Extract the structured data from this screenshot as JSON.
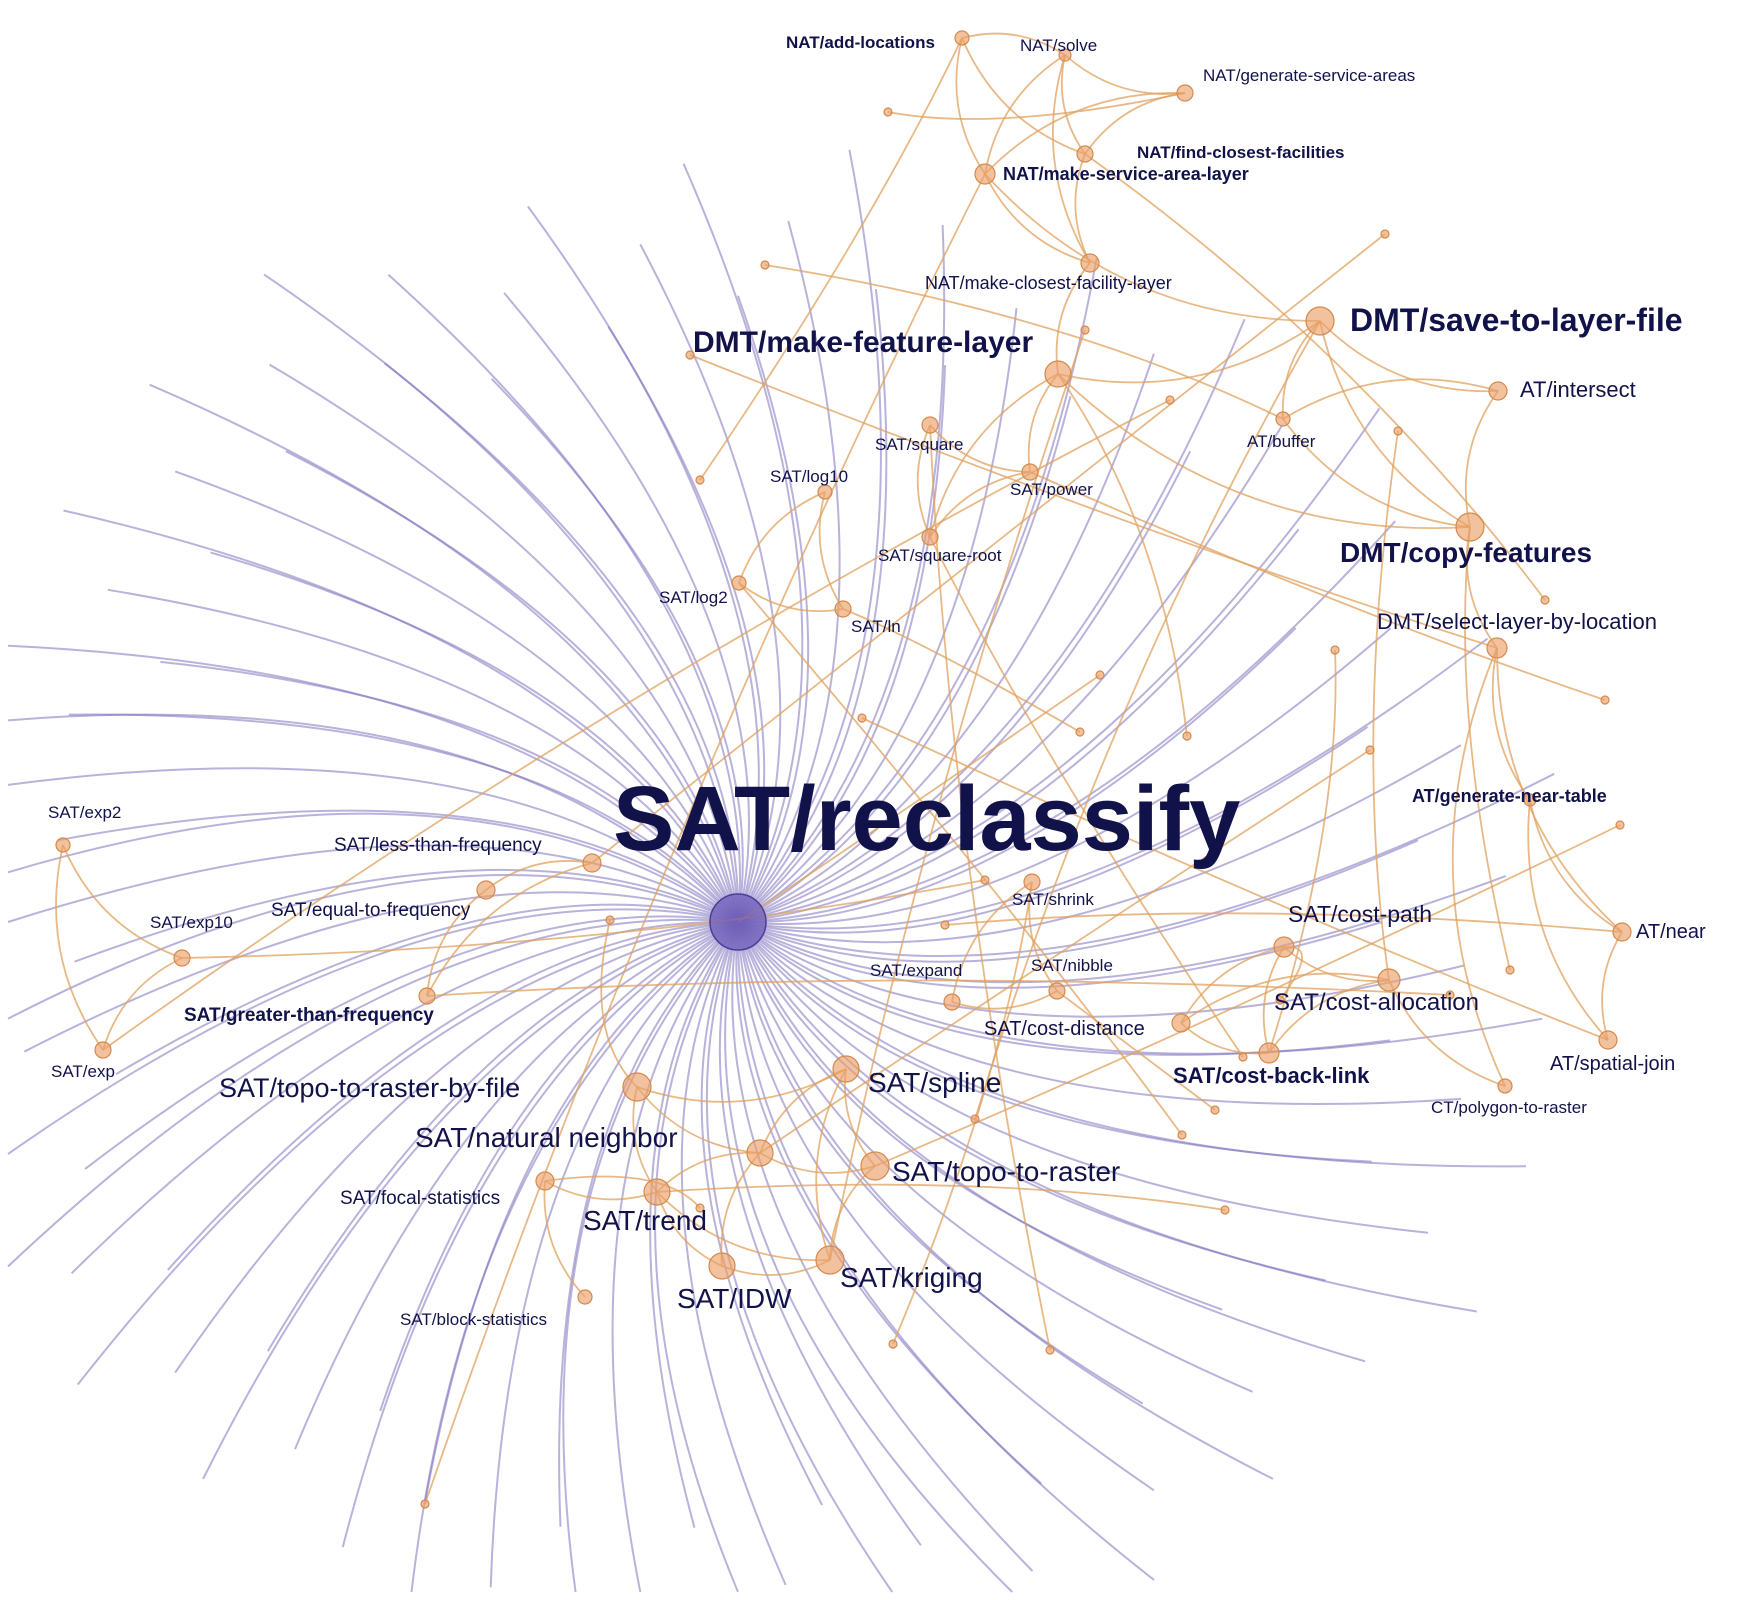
{
  "colors": {
    "background": "#ffffff",
    "hub_edge": "#7f72bd",
    "edge": "#e0a15f",
    "node_fill": "#eba06a",
    "hub_fill": "#6b5ab8",
    "label": "#12124a"
  },
  "hub": {
    "id": "SAT/reclassify",
    "label": "SAT/reclassify"
  },
  "nodes": [
    {
      "id": "SAT/reclassify",
      "label": "SAT/reclassify"
    },
    {
      "id": "NAT/add-locations",
      "label": "NAT/add-locations"
    },
    {
      "id": "NAT/solve",
      "label": "NAT/solve"
    },
    {
      "id": "NAT/generate-service-areas",
      "label": "NAT/generate-service-areas"
    },
    {
      "id": "NAT/find-closest-facilities",
      "label": "NAT/find-closest-facilities"
    },
    {
      "id": "NAT/make-service-area-layer",
      "label": "NAT/make-service-area-layer"
    },
    {
      "id": "NAT/make-closest-facility-layer",
      "label": "NAT/make-closest-facility-layer"
    },
    {
      "id": "DMT/make-feature-layer",
      "label": "DMT/make-feature-layer"
    },
    {
      "id": "DMT/save-to-layer-file",
      "label": "DMT/save-to-layer-file"
    },
    {
      "id": "AT/intersect",
      "label": "AT/intersect"
    },
    {
      "id": "AT/buffer",
      "label": "AT/buffer"
    },
    {
      "id": "DMT/copy-features",
      "label": "DMT/copy-features"
    },
    {
      "id": "DMT/select-layer-by-location",
      "label": "DMT/select-layer-by-location"
    },
    {
      "id": "AT/generate-near-table",
      "label": "AT/generate-near-table"
    },
    {
      "id": "AT/near",
      "label": "AT/near"
    },
    {
      "id": "AT/spatial-join",
      "label": "AT/spatial-join"
    },
    {
      "id": "CT/polygon-to-raster",
      "label": "CT/polygon-to-raster"
    },
    {
      "id": "SAT/square",
      "label": "SAT/square"
    },
    {
      "id": "SAT/power",
      "label": "SAT/power"
    },
    {
      "id": "SAT/square-root",
      "label": "SAT/square-root"
    },
    {
      "id": "SAT/log10",
      "label": "SAT/log10"
    },
    {
      "id": "SAT/log2",
      "label": "SAT/log2"
    },
    {
      "id": "SAT/ln",
      "label": "SAT/ln"
    },
    {
      "id": "SAT/exp2",
      "label": "SAT/exp2"
    },
    {
      "id": "SAT/exp10",
      "label": "SAT/exp10"
    },
    {
      "id": "SAT/exp",
      "label": "SAT/exp"
    },
    {
      "id": "SAT/less-than-frequency",
      "label": "SAT/less-than-frequency"
    },
    {
      "id": "SAT/equal-to-frequency",
      "label": "SAT/equal-to-frequency"
    },
    {
      "id": "SAT/greater-than-frequency",
      "label": "SAT/greater-than-frequency"
    },
    {
      "id": "SAT/shrink",
      "label": "SAT/shrink"
    },
    {
      "id": "SAT/expand",
      "label": "SAT/expand"
    },
    {
      "id": "SAT/nibble",
      "label": "SAT/nibble"
    },
    {
      "id": "SAT/cost-path",
      "label": "SAT/cost-path"
    },
    {
      "id": "SAT/cost-allocation",
      "label": "SAT/cost-allocation"
    },
    {
      "id": "SAT/cost-distance",
      "label": "SAT/cost-distance"
    },
    {
      "id": "SAT/cost-back-link",
      "label": "SAT/cost-back-link"
    },
    {
      "id": "SAT/topo-to-raster-by-file",
      "label": "SAT/topo-to-raster-by-file"
    },
    {
      "id": "SAT/spline",
      "label": "SAT/spline"
    },
    {
      "id": "SAT/natural neighbor",
      "label": "SAT/natural neighbor"
    },
    {
      "id": "SAT/topo-to-raster",
      "label": "SAT/topo-to-raster"
    },
    {
      "id": "SAT/trend",
      "label": "SAT/trend"
    },
    {
      "id": "SAT/IDW",
      "label": "SAT/IDW"
    },
    {
      "id": "SAT/kriging",
      "label": "SAT/kriging"
    },
    {
      "id": "SAT/focal-statistics",
      "label": "SAT/focal-statistics"
    },
    {
      "id": "SAT/block-statistics",
      "label": "SAT/block-statistics"
    }
  ],
  "edges": [
    [
      "NAT/solve",
      "NAT/add-locations"
    ],
    [
      "NAT/solve",
      "NAT/generate-service-areas"
    ],
    [
      "NAT/solve",
      "NAT/find-closest-facilities"
    ],
    [
      "NAT/solve",
      "NAT/make-service-area-layer"
    ],
    [
      "NAT/solve",
      "NAT/make-closest-facility-layer"
    ],
    [
      "NAT/add-locations",
      "NAT/make-service-area-layer"
    ],
    [
      "NAT/add-locations",
      "NAT/find-closest-facilities"
    ],
    [
      "NAT/generate-service-areas",
      "NAT/make-service-area-layer"
    ],
    [
      "NAT/generate-service-areas",
      "NAT/find-closest-facilities"
    ],
    [
      "NAT/make-service-area-layer",
      "NAT/make-closest-facility-layer"
    ],
    [
      "NAT/find-closest-facilities",
      "NAT/make-closest-facility-layer"
    ],
    [
      "NAT/make-service-area-layer",
      "DMT/save-to-layer-file"
    ],
    [
      "NAT/make-closest-facility-layer",
      "DMT/make-feature-layer"
    ],
    [
      "DMT/make-feature-layer",
      "DMT/save-to-layer-file"
    ],
    [
      "DMT/make-feature-layer",
      "DMT/copy-features"
    ],
    [
      "DMT/make-feature-layer",
      "SAT/power"
    ],
    [
      "DMT/make-feature-layer",
      "SAT/square-root"
    ],
    [
      "DMT/save-to-layer-file",
      "AT/intersect"
    ],
    [
      "DMT/save-to-layer-file",
      "AT/buffer"
    ],
    [
      "DMT/save-to-layer-file",
      "DMT/copy-features"
    ],
    [
      "AT/intersect",
      "DMT/copy-features"
    ],
    [
      "AT/buffer",
      "DMT/copy-features"
    ],
    [
      "AT/intersect",
      "AT/buffer"
    ],
    [
      "DMT/copy-features",
      "DMT/select-layer-by-location"
    ],
    [
      "DMT/select-layer-by-location",
      "AT/generate-near-table"
    ],
    [
      "DMT/select-layer-by-location",
      "AT/near"
    ],
    [
      "DMT/select-layer-by-location",
      "CT/polygon-to-raster"
    ],
    [
      "AT/generate-near-table",
      "AT/near"
    ],
    [
      "AT/near",
      "AT/spatial-join"
    ],
    [
      "AT/generate-near-table",
      "AT/spatial-join"
    ],
    [
      "SAT/square",
      "SAT/power"
    ],
    [
      "SAT/square",
      "SAT/square-root"
    ],
    [
      "SAT/power",
      "SAT/square-root"
    ],
    [
      "SAT/log10",
      "SAT/log2"
    ],
    [
      "SAT/log10",
      "SAT/ln"
    ],
    [
      "SAT/log2",
      "SAT/ln"
    ],
    [
      "SAT/exp2",
      "SAT/exp10"
    ],
    [
      "SAT/exp2",
      "SAT/exp"
    ],
    [
      "SAT/exp10",
      "SAT/exp"
    ],
    [
      "SAT/less-than-frequency",
      "SAT/equal-to-frequency"
    ],
    [
      "SAT/less-than-frequency",
      "SAT/greater-than-frequency"
    ],
    [
      "SAT/equal-to-frequency",
      "SAT/greater-than-frequency"
    ],
    [
      "SAT/shrink",
      "SAT/expand"
    ],
    [
      "SAT/shrink",
      "SAT/nibble"
    ],
    [
      "SAT/expand",
      "SAT/nibble"
    ],
    [
      "SAT/cost-path",
      "SAT/cost-allocation"
    ],
    [
      "SAT/cost-path",
      "SAT/cost-distance"
    ],
    [
      "SAT/cost-path",
      "SAT/cost-back-link"
    ],
    [
      "SAT/cost-allocation",
      "SAT/cost-distance"
    ],
    [
      "SAT/cost-allocation",
      "SAT/cost-back-link"
    ],
    [
      "SAT/cost-distance",
      "SAT/cost-back-link"
    ],
    [
      "SAT/cost-allocation",
      "CT/polygon-to-raster"
    ],
    [
      "SAT/topo-to-raster-by-file",
      "SAT/spline"
    ],
    [
      "SAT/topo-to-raster-by-file",
      "SAT/natural neighbor"
    ],
    [
      "SAT/topo-to-raster-by-file",
      "SAT/trend"
    ],
    [
      "SAT/spline",
      "SAT/topo-to-raster"
    ],
    [
      "SAT/spline",
      "SAT/natural neighbor"
    ],
    [
      "SAT/spline",
      "SAT/kriging"
    ],
    [
      "SAT/natural neighbor",
      "SAT/trend"
    ],
    [
      "SAT/natural neighbor",
      "SAT/IDW"
    ],
    [
      "SAT/natural neighbor",
      "SAT/topo-to-raster"
    ],
    [
      "SAT/topo-to-raster",
      "SAT/kriging"
    ],
    [
      "SAT/trend",
      "SAT/IDW"
    ],
    [
      "SAT/IDW",
      "SAT/kriging"
    ],
    [
      "SAT/trend",
      "SAT/kriging"
    ],
    [
      "SAT/focal-statistics",
      "SAT/block-statistics"
    ],
    [
      "SAT/focal-statistics",
      "SAT/trend"
    ]
  ]
}
